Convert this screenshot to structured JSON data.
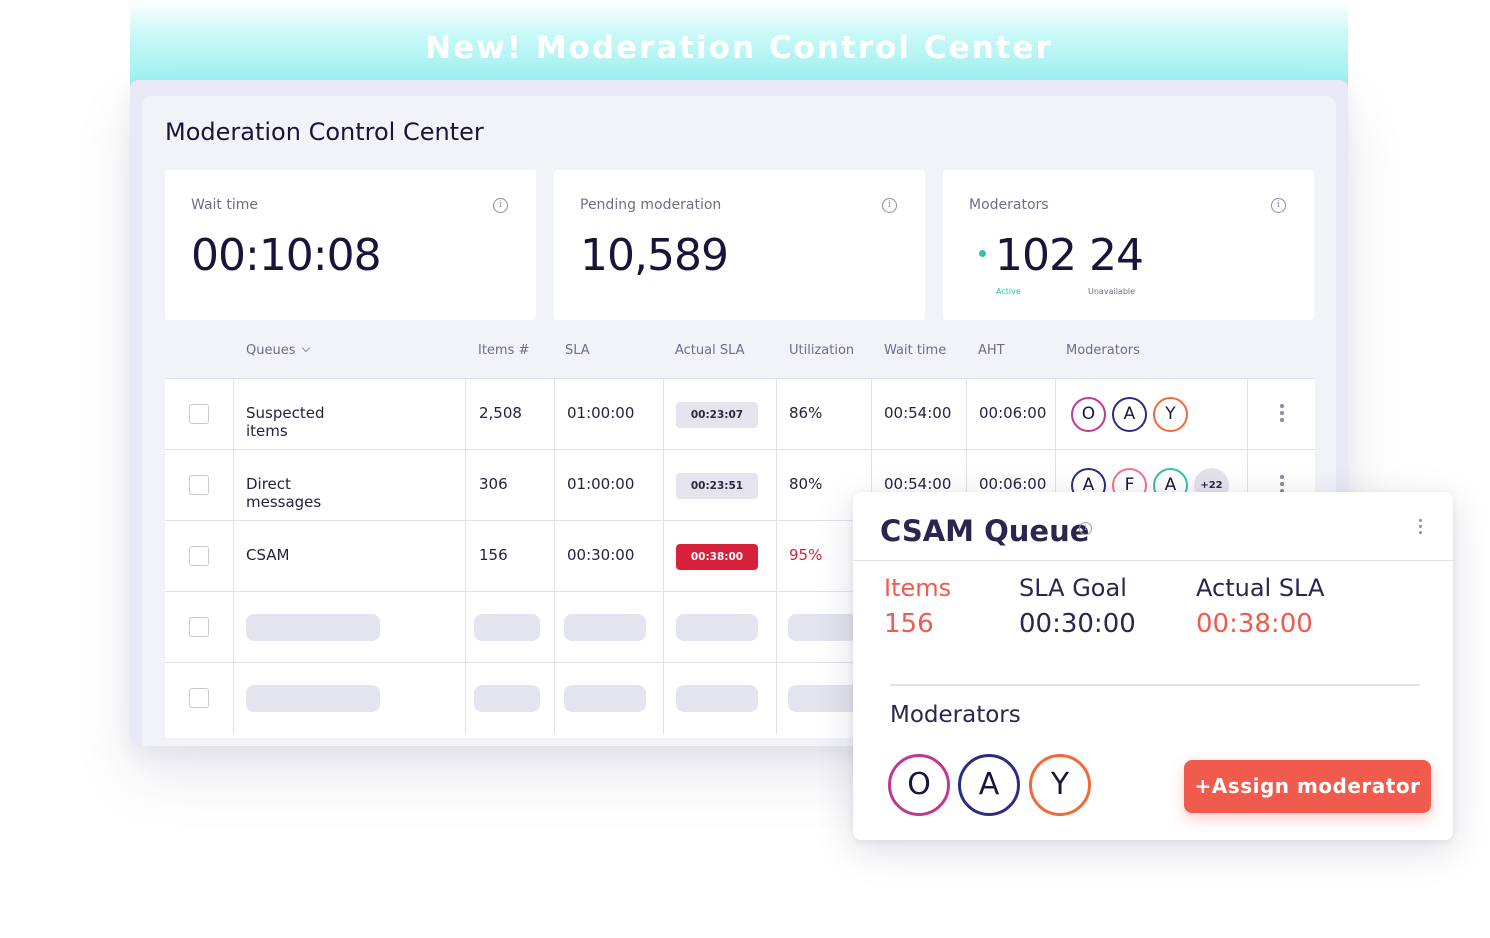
{
  "banner": {
    "title": "New! Moderation Control Center"
  },
  "app": {
    "title": "Moderation Control Center"
  },
  "cards": {
    "wait_time": {
      "label": "Wait time",
      "value": "00:10:08"
    },
    "pending": {
      "label": "Pending moderation",
      "value": "10,589"
    },
    "moderators": {
      "label": "Moderators",
      "active_value": "102",
      "active_label": "Active",
      "unavailable_value": "24",
      "unavailable_label": "Unavailable"
    }
  },
  "table": {
    "headers": {
      "queues": "Queues",
      "items": "Items #",
      "sla": "SLA",
      "actual_sla": "Actual SLA",
      "utilization": "Utilization",
      "wait_time": "Wait time",
      "aht": "AHT",
      "moderators": "Moderators"
    },
    "rows": [
      {
        "queue": "Suspected items",
        "items": "2,508",
        "sla": "01:00:00",
        "actual_sla": "00:23:07",
        "utilization": "86%",
        "wait_time": "00:54:00",
        "aht": "00:06:00",
        "moderators": [
          "O",
          "A",
          "Y"
        ]
      },
      {
        "queue": "Direct messages",
        "items": "306",
        "sla": "01:00:00",
        "actual_sla": "00:23:51",
        "utilization": "80%",
        "wait_time": "00:54:00",
        "aht": "00:06:00",
        "moderators": [
          "A",
          "F",
          "A"
        ],
        "more": "+22"
      },
      {
        "queue": "CSAM",
        "items": "156",
        "sla": "00:30:00",
        "actual_sla": "00:38:00",
        "utilization": "95%"
      }
    ]
  },
  "colors": {
    "accent": "#f05b4e",
    "danger": "#d8203a",
    "active_green": "#2ec4a9",
    "avatar_purple": "#c0398f",
    "avatar_navy": "#2b2c84",
    "avatar_orange": "#f06a3a",
    "avatar_teal": "#2ec4a9",
    "avatar_pink": "#f07090"
  },
  "popup": {
    "title": "CSAM Queue",
    "items_label": "Items",
    "items_value": "156",
    "sla_goal_label": "SLA Goal",
    "sla_goal_value": "00:30:00",
    "actual_sla_label": "Actual SLA",
    "actual_sla_value": "00:38:00",
    "moderators_label": "Moderators",
    "moderators": [
      "O",
      "A",
      "Y"
    ],
    "assign_button": "+Assign moderator"
  }
}
